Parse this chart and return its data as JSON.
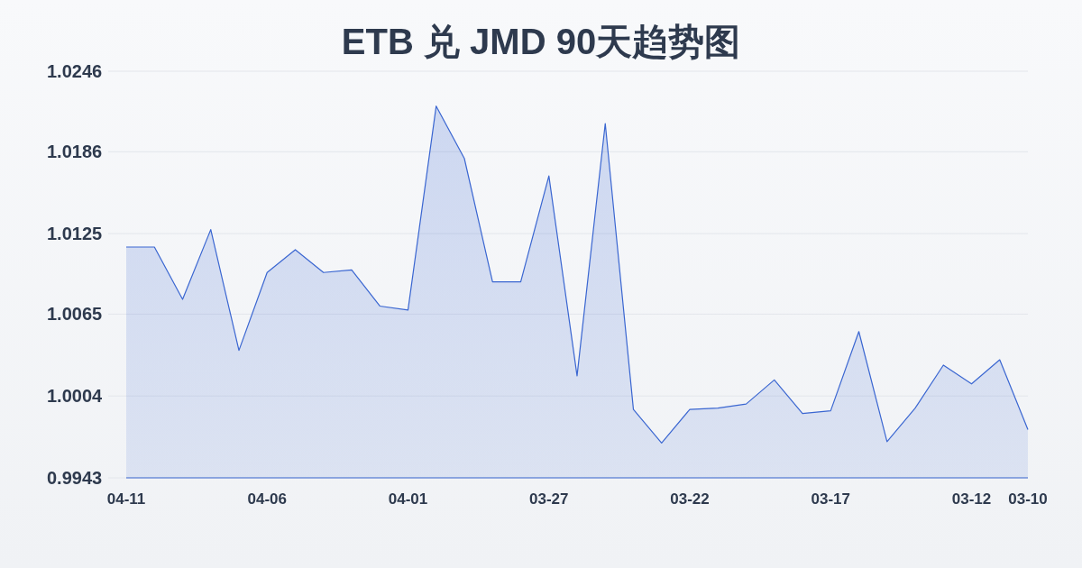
{
  "chart_data": {
    "type": "area",
    "title": "ETB 兑 JMD 90天趋势图",
    "categories": [
      "04-11",
      null,
      null,
      null,
      null,
      "04-06",
      null,
      null,
      null,
      null,
      "04-01",
      null,
      null,
      null,
      null,
      "03-27",
      null,
      null,
      null,
      null,
      "03-22",
      null,
      null,
      null,
      null,
      "03-17",
      null,
      null,
      null,
      null,
      "03-12",
      null,
      "03-10"
    ],
    "series": [
      {
        "color": "#3a66d1",
        "values": [
          1.0115,
          1.0115,
          1.0076,
          1.0128,
          1.0038,
          1.0096,
          1.0113,
          1.0096,
          1.0098,
          1.0071,
          1.0068,
          1.022,
          1.0181,
          1.0089,
          1.0089,
          1.0168,
          1.0019,
          1.0207,
          0.9994,
          0.9969,
          0.9994,
          0.9995,
          0.9998,
          1.0016,
          0.9991,
          0.9993,
          1.0052,
          0.997,
          0.9995,
          1.0027,
          1.0013,
          1.0031,
          0.9979
        ]
      }
    ],
    "ylim": [
      0.9943,
      1.0246
    ],
    "yticks": [
      0.9943,
      1.0004,
      1.0065,
      1.0125,
      1.0186,
      1.0246
    ],
    "grid": "y",
    "marker": "none"
  }
}
